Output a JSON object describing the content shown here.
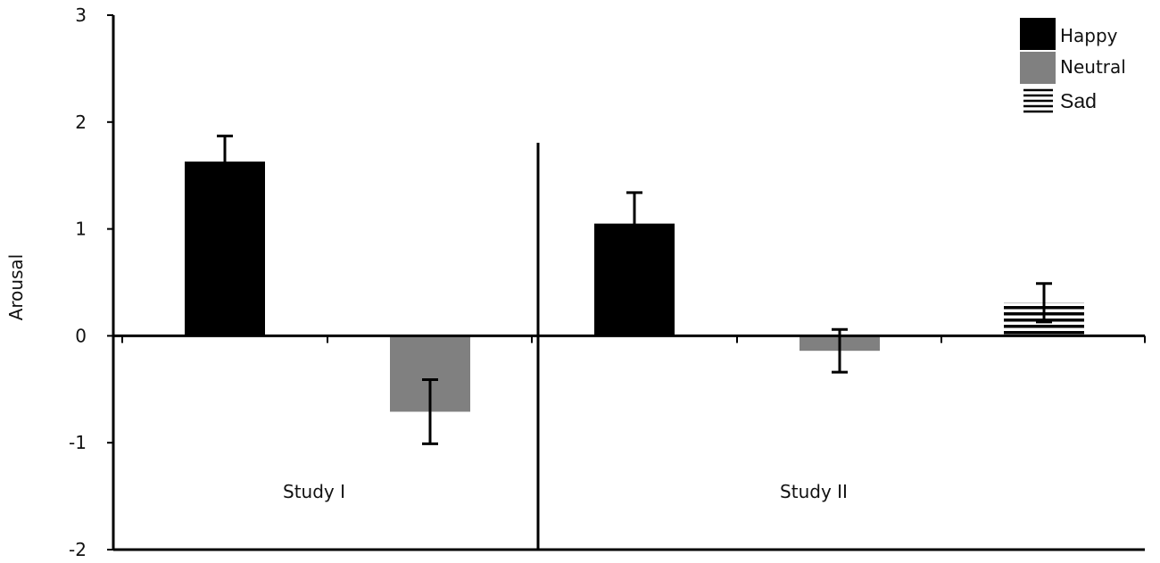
{
  "chart_data": {
    "type": "bar",
    "ylabel": "Arousal",
    "ylim": [
      -2,
      3
    ],
    "yticks": [
      -2,
      -1,
      0,
      1,
      2,
      3
    ],
    "grid": false,
    "legend_position": "top-right",
    "groups": [
      "Study I",
      "Study II"
    ],
    "series": [
      {
        "name": "Happy",
        "color": "#000000",
        "fill": "solid",
        "values": [
          1.63,
          1.05
        ],
        "errors": [
          0.24,
          0.29
        ]
      },
      {
        "name": "Neutral",
        "color": "#808080",
        "fill": "solid",
        "values": [
          -0.71,
          -0.14
        ],
        "errors": [
          0.3,
          0.2
        ]
      },
      {
        "name": "Sad",
        "color": "#000000",
        "fill": "horizontal-lines",
        "values": [
          null,
          0.31
        ],
        "errors": [
          null,
          0.18
        ]
      }
    ]
  }
}
